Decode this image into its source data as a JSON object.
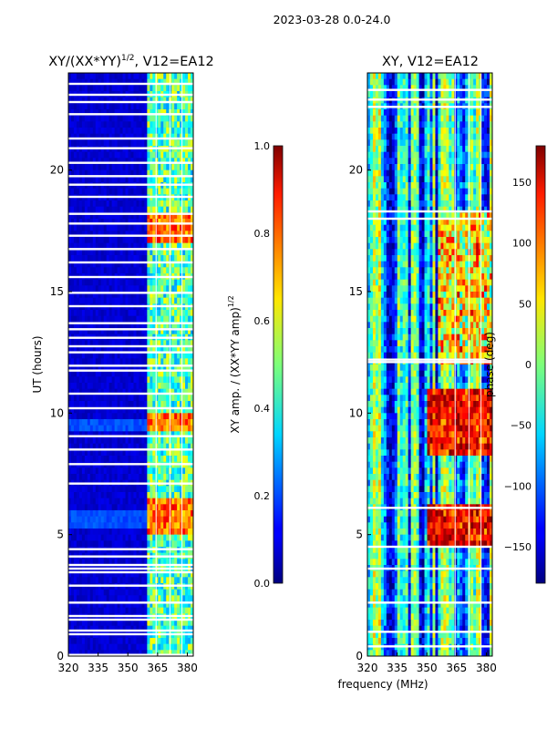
{
  "suptitle": "2023-03-28 0.0-24.0",
  "shared": {
    "xlabel": "frequency (MHz)",
    "ylabel": "UT (hours)"
  },
  "chart_data": [
    {
      "type": "heatmap",
      "title_main": "XY/(XX*YY)",
      "title_exp": "1/2",
      "title_tail": ", V12=EA12",
      "xlabel": "frequency (MHz)",
      "ylabel": "UT (hours)",
      "xlim": [
        320,
        383
      ],
      "ylim": [
        0,
        24
      ],
      "xticks": [
        "320",
        "335",
        "350",
        "365",
        "380"
      ],
      "xtick_values": [
        320,
        335,
        350,
        365,
        380
      ],
      "yticks": [
        "0",
        "5",
        "10",
        "15",
        "20"
      ],
      "ytick_values": [
        0,
        5,
        10,
        15,
        20
      ],
      "colorbar": {
        "label_main": "XY amp. / (XX*YY amp)",
        "label_exp": "1/2",
        "range": [
          0.0,
          1.0
        ],
        "ticks": [
          "0.0",
          "0.2",
          "0.4",
          "0.6",
          "0.8",
          "1.0"
        ],
        "tick_values": [
          0.0,
          0.2,
          0.4,
          0.6,
          0.8,
          1.0
        ]
      },
      "colormap": "jet",
      "description_values": {
        "low_freq_band_mhz": [
          320,
          360
        ],
        "low_freq_typical": 0.05,
        "high_freq_band_mhz": [
          360,
          383
        ],
        "high_freq_typical": 0.45,
        "high_value_hours": [
          [
            5.0,
            6.6
          ],
          [
            9.2,
            9.9
          ],
          [
            17.0,
            18.2
          ]
        ],
        "high_value_level": 0.9
      },
      "blank_rows_hours": [
        0.05,
        0.9,
        1.05,
        1.5,
        1.65,
        2.2,
        2.9,
        3.45,
        3.6,
        3.75,
        4.1,
        4.4,
        7.1,
        7.9,
        8.5,
        9.05,
        10.2,
        10.8,
        11.75,
        11.95,
        12.5,
        12.75,
        13.1,
        13.45,
        13.7,
        14.4,
        14.95,
        15.6,
        16.2,
        16.75,
        17.3,
        17.8,
        18.2,
        18.9,
        19.4,
        19.75,
        20.3,
        20.9,
        21.3,
        22.3,
        22.8,
        23.1,
        23.55
      ]
    },
    {
      "type": "heatmap",
      "title_main": "XY, V12=EA12",
      "xlabel": "frequency (MHz)",
      "xlim": [
        320,
        383
      ],
      "ylim": [
        0,
        24
      ],
      "xticks": [
        "320",
        "335",
        "350",
        "365",
        "380"
      ],
      "xtick_values": [
        320,
        335,
        350,
        365,
        380
      ],
      "yticks": [
        "0",
        "5",
        "10",
        "15",
        "20"
      ],
      "ytick_values": [
        0,
        5,
        10,
        15,
        20
      ],
      "colorbar": {
        "label_main": "phase (deg)",
        "range": [
          -180,
          180
        ],
        "ticks": [
          "−150",
          "−100",
          "−50",
          "0",
          "50",
          "100",
          "150"
        ],
        "tick_values": [
          -150,
          -100,
          -50,
          0,
          50,
          100,
          150
        ]
      },
      "colormap": "jet",
      "blank_rows_hours": [
        0.4,
        1.0,
        2.2,
        3.6,
        4.5,
        6.1,
        12.1,
        12.2,
        18.0,
        18.3,
        22.6,
        22.9,
        23.3
      ]
    }
  ]
}
